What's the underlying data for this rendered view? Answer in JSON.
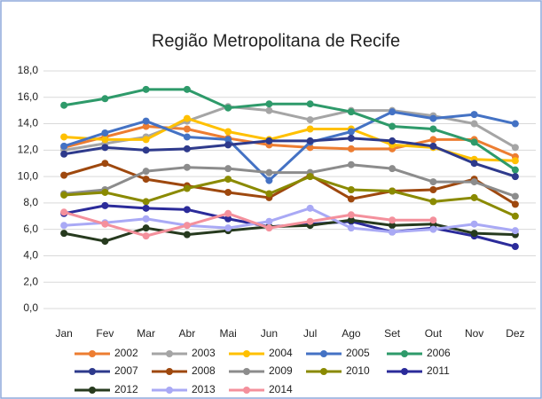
{
  "chart_data": {
    "type": "line",
    "title": "Região Metropolitana de Recife",
    "categories": [
      "Jan",
      "Fev",
      "Mar",
      "Abr",
      "Mai",
      "Jun",
      "Jul",
      "Ago",
      "Set",
      "Out",
      "Nov",
      "Dez"
    ],
    "ylim": [
      0,
      18
    ],
    "yticks": [
      {
        "value": 0,
        "label": "0,0"
      },
      {
        "value": 2,
        "label": "2,0"
      },
      {
        "value": 4,
        "label": "4,0"
      },
      {
        "value": 6,
        "label": "6,0"
      },
      {
        "value": 8,
        "label": "8,0"
      },
      {
        "value": 10,
        "label": "10,0"
      },
      {
        "value": 12,
        "label": "12,0"
      },
      {
        "value": 14,
        "label": "14,0"
      },
      {
        "value": 16,
        "label": "16,0"
      },
      {
        "value": 18,
        "label": "18,0"
      }
    ],
    "grid": true,
    "legend": "bottom",
    "series": [
      {
        "name": "2002",
        "color": "#ED7D31",
        "values": [
          12.2,
          13.0,
          13.8,
          13.6,
          12.9,
          12.4,
          12.2,
          12.1,
          12.1,
          12.8,
          12.8,
          11.5
        ]
      },
      {
        "name": "2003",
        "color": "#A5A5A5",
        "values": [
          12.0,
          12.5,
          13.0,
          14.2,
          15.3,
          15.0,
          14.3,
          15.0,
          15.0,
          14.6,
          14.0,
          12.2
        ]
      },
      {
        "name": "2004",
        "color": "#FFC000",
        "values": [
          13.0,
          12.8,
          12.8,
          14.4,
          13.4,
          12.8,
          13.6,
          13.6,
          12.4,
          12.2,
          11.3,
          11.2
        ]
      },
      {
        "name": "2005",
        "color": "#4472C4",
        "values": [
          12.3,
          13.3,
          14.2,
          13.0,
          12.8,
          9.7,
          12.6,
          13.4,
          14.9,
          14.4,
          14.7,
          14.0
        ]
      },
      {
        "name": "2006",
        "color": "#2E9A6A",
        "values": [
          15.4,
          15.9,
          16.6,
          16.6,
          15.2,
          15.5,
          15.5,
          14.9,
          13.8,
          13.6,
          12.6,
          10.5
        ]
      },
      {
        "name": "2007",
        "color": "#2E3A8C",
        "values": [
          11.7,
          12.2,
          12.0,
          12.1,
          12.4,
          12.7,
          12.7,
          12.9,
          12.7,
          12.3,
          11.0,
          10.0
        ]
      },
      {
        "name": "2008",
        "color": "#9E480E",
        "values": [
          10.1,
          11.0,
          9.8,
          9.3,
          8.8,
          8.4,
          10.1,
          8.3,
          8.9,
          9.0,
          9.8,
          7.9
        ]
      },
      {
        "name": "2009",
        "color": "#8C8C8C",
        "values": [
          8.7,
          9.0,
          10.4,
          10.7,
          10.6,
          10.3,
          10.3,
          10.9,
          10.6,
          9.6,
          9.6,
          8.5
        ]
      },
      {
        "name": "2010",
        "color": "#8A8A00",
        "values": [
          8.6,
          8.8,
          8.1,
          9.1,
          9.8,
          8.7,
          10.0,
          9.0,
          8.9,
          8.1,
          8.4,
          7.0
        ]
      },
      {
        "name": "2011",
        "color": "#2B2B9A",
        "values": [
          7.2,
          7.8,
          7.6,
          7.5,
          6.8,
          6.2,
          6.4,
          6.6,
          5.8,
          6.1,
          5.5,
          4.7
        ]
      },
      {
        "name": "2012",
        "color": "#263A1E",
        "values": [
          5.7,
          5.1,
          6.1,
          5.6,
          5.9,
          6.2,
          6.3,
          6.7,
          6.3,
          6.4,
          5.7,
          5.6
        ]
      },
      {
        "name": "2013",
        "color": "#A9A9F5",
        "values": [
          6.3,
          6.5,
          6.8,
          6.3,
          6.1,
          6.6,
          7.6,
          6.1,
          5.8,
          6.0,
          6.4,
          5.9
        ]
      },
      {
        "name": "2014",
        "color": "#F4909C",
        "values": [
          7.3,
          6.4,
          5.5,
          6.3,
          7.2,
          6.1,
          6.6,
          7.1,
          6.7,
          6.7,
          null,
          null
        ]
      }
    ]
  }
}
